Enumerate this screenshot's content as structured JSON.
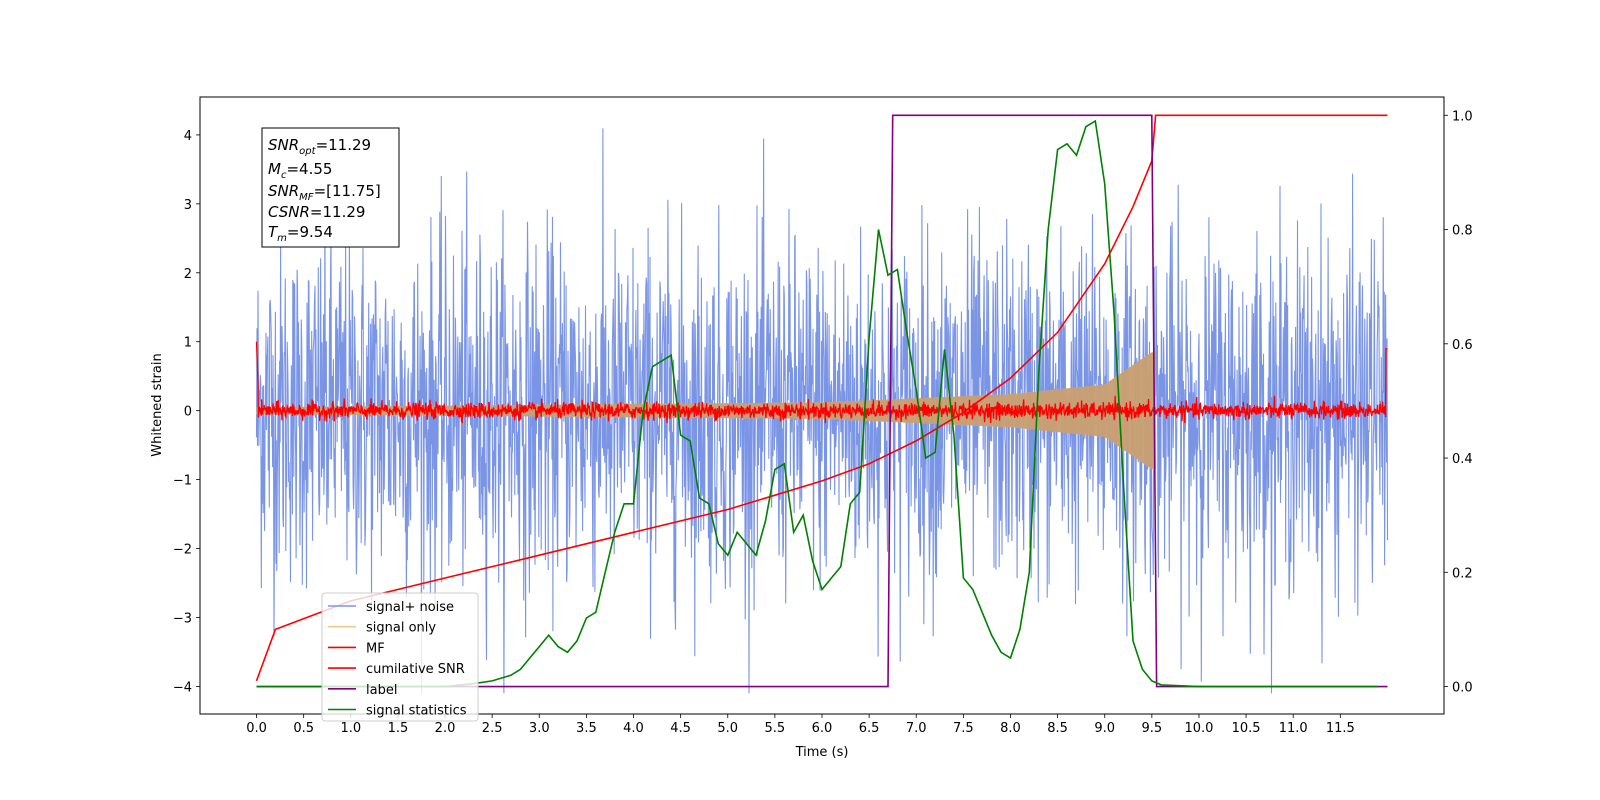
{
  "chart_data": {
    "type": "line",
    "xlabel": "Time (s)",
    "ylabel": "Whitened strain",
    "xlim": [
      -0.6,
      12.6
    ],
    "ylim": [
      -4.4,
      4.55
    ],
    "y2lim": [
      -0.048,
      1.032
    ],
    "x_ticks": [
      "0.0",
      "0.5",
      "1.0",
      "1.5",
      "2.0",
      "2.5",
      "3.0",
      "3.5",
      "4.0",
      "4.5",
      "5.0",
      "5.5",
      "6.0",
      "6.5",
      "7.0",
      "7.5",
      "8.0",
      "8.5",
      "9.0",
      "9.5",
      "10.0",
      "10.5",
      "11.0",
      "11.5"
    ],
    "y_ticks": [
      "4",
      "3",
      "2",
      "1",
      "0",
      "−1",
      "−2",
      "−3",
      "−4"
    ],
    "y2_ticks": [
      "1.0",
      "0.8",
      "0.6",
      "0.4",
      "0.2",
      "0.0"
    ],
    "grid": false,
    "legend_position": "lower-left",
    "info_box": {
      "snr_opt": "=11.29",
      "mc": "=4.55",
      "snr_mf": "=[11.75]",
      "csnr": "=11.29",
      "tm": "=9.54"
    },
    "series": [
      {
        "name": "signal+ noise",
        "color": "#7b95e6",
        "axis": "left",
        "kind": "noise",
        "x_range": [
          0.0,
          12.0
        ],
        "amplitude_approx": 4.1
      },
      {
        "name": "signal only",
        "color": "#f5c78a",
        "axis": "left",
        "kind": "chirp",
        "x_range": [
          0.0,
          9.54
        ],
        "envelope": {
          "x": [
            0.0,
            6.0,
            8.0,
            9.0,
            9.5
          ],
          "y": [
            0.05,
            0.12,
            0.24,
            0.38,
            0.85
          ]
        }
      },
      {
        "name": "MF",
        "color": "#ff0000",
        "axis": "left",
        "kind": "noise",
        "x_range": [
          0.0,
          12.0
        ],
        "amplitude_approx": 0.15
      },
      {
        "name": "cumilative SNR",
        "color": "#ff0000",
        "axis": "right",
        "x": [
          0.0,
          0.2,
          1.0,
          2.0,
          3.0,
          4.0,
          5.0,
          6.0,
          6.5,
          7.0,
          7.5,
          8.0,
          8.5,
          9.0,
          9.3,
          9.5,
          9.54,
          12.0
        ],
        "y": [
          0.01,
          0.1,
          0.15,
          0.19,
          0.23,
          0.27,
          0.31,
          0.36,
          0.39,
          0.43,
          0.48,
          0.54,
          0.62,
          0.74,
          0.84,
          0.92,
          1.0,
          1.0
        ]
      },
      {
        "name": "label",
        "color": "#800080",
        "axis": "right",
        "x": [
          0.0,
          6.7,
          6.75,
          9.5,
          9.55,
          12.0
        ],
        "y": [
          0.0,
          0.0,
          1.0,
          1.0,
          0.0,
          0.0
        ]
      },
      {
        "name": "signal statistics",
        "color": "#008000",
        "axis": "right",
        "x": [
          0.0,
          1.0,
          2.0,
          2.3,
          2.5,
          2.7,
          2.8,
          2.9,
          3.0,
          3.1,
          3.2,
          3.3,
          3.4,
          3.5,
          3.6,
          3.7,
          3.8,
          3.9,
          4.0,
          4.1,
          4.2,
          4.3,
          4.4,
          4.5,
          4.6,
          4.7,
          4.8,
          4.9,
          5.0,
          5.1,
          5.2,
          5.3,
          5.4,
          5.5,
          5.6,
          5.7,
          5.8,
          5.9,
          6.0,
          6.1,
          6.2,
          6.3,
          6.4,
          6.5,
          6.6,
          6.7,
          6.8,
          6.9,
          7.0,
          7.1,
          7.2,
          7.3,
          7.4,
          7.5,
          7.6,
          7.7,
          7.8,
          7.9,
          8.0,
          8.1,
          8.2,
          8.3,
          8.4,
          8.5,
          8.6,
          8.7,
          8.8,
          8.9,
          9.0,
          9.1,
          9.2,
          9.3,
          9.4,
          9.5,
          9.6,
          10.0,
          11.0,
          11.9
        ],
        "y": [
          0.0,
          0.0,
          0.0,
          0.005,
          0.01,
          0.02,
          0.03,
          0.05,
          0.07,
          0.09,
          0.07,
          0.06,
          0.08,
          0.12,
          0.13,
          0.2,
          0.27,
          0.32,
          0.32,
          0.48,
          0.56,
          0.57,
          0.58,
          0.44,
          0.43,
          0.33,
          0.32,
          0.25,
          0.23,
          0.27,
          0.25,
          0.23,
          0.29,
          0.38,
          0.39,
          0.27,
          0.3,
          0.22,
          0.17,
          0.19,
          0.21,
          0.32,
          0.34,
          0.61,
          0.8,
          0.72,
          0.73,
          0.62,
          0.52,
          0.4,
          0.41,
          0.59,
          0.44,
          0.19,
          0.17,
          0.13,
          0.09,
          0.06,
          0.05,
          0.1,
          0.2,
          0.55,
          0.8,
          0.94,
          0.95,
          0.93,
          0.98,
          0.99,
          0.88,
          0.65,
          0.35,
          0.08,
          0.03,
          0.01,
          0.003,
          0.0,
          0.0,
          0.0
        ]
      }
    ]
  }
}
